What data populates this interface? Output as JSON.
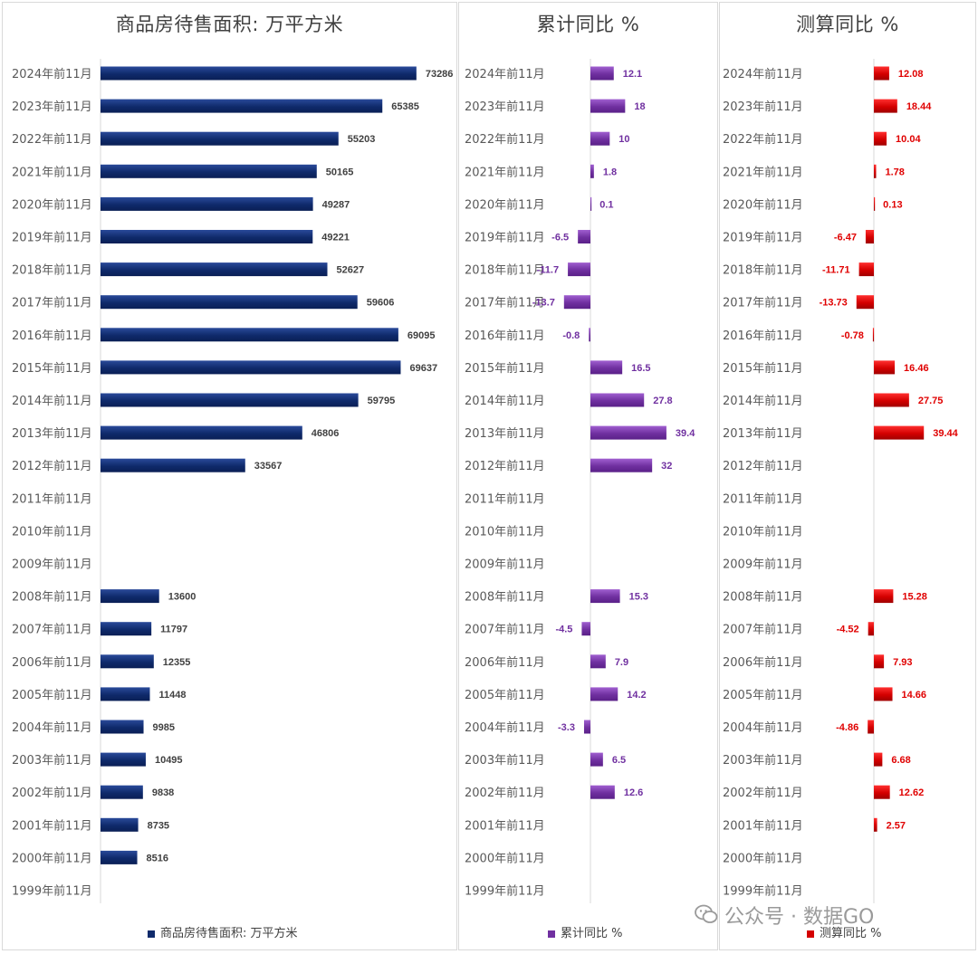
{
  "colors": {
    "bar1": "#0f2a6b",
    "bar2": "#7030a0",
    "bar3": "#d40000",
    "text": "#595959",
    "value2": "#7030a0",
    "value3": "#e00000"
  },
  "categories": [
    "2024年前11月",
    "2023年前11月",
    "2022年前11月",
    "2021年前11月",
    "2020年前11月",
    "2019年前11月",
    "2018年前11月",
    "2017年前11月",
    "2016年前11月",
    "2015年前11月",
    "2014年前11月",
    "2013年前11月",
    "2012年前11月",
    "2011年前11月",
    "2010年前11月",
    "2009年前11月",
    "2008年前11月",
    "2007年前11月",
    "2006年前11月",
    "2005年前11月",
    "2004年前11月",
    "2003年前11月",
    "2002年前11月",
    "2001年前11月",
    "2000年前11月",
    "1999年前11月"
  ],
  "chart_data": [
    {
      "type": "bar",
      "title": "商品房待售面积: 万平方米",
      "legend": "商品房待售面积: 万平方米",
      "values": [
        73286,
        65385,
        55203,
        50165,
        49287,
        49221,
        52627,
        59606,
        69095,
        69637,
        59795,
        46806,
        33567,
        null,
        null,
        null,
        13600,
        11797,
        12355,
        11448,
        9985,
        10495,
        9838,
        8735,
        8516,
        null
      ],
      "labels": [
        "73286",
        "65385",
        "55203",
        "50165",
        "49287",
        "49221",
        "52627",
        "59606",
        "69095",
        "69637",
        "59795",
        "46806",
        "33567",
        "",
        "",
        "",
        "13600",
        "11797",
        "12355",
        "11448",
        "9985",
        "10495",
        "9838",
        "8735",
        "8516",
        ""
      ]
    },
    {
      "type": "bar",
      "title": "累计同比 %",
      "legend": "累计同比 %",
      "values": [
        12.1,
        18,
        10,
        1.8,
        0.1,
        -6.5,
        -11.7,
        -13.7,
        -0.8,
        16.5,
        27.8,
        39.4,
        32,
        null,
        null,
        null,
        15.3,
        -4.5,
        7.9,
        14.2,
        -3.3,
        6.5,
        12.6,
        null,
        null,
        null
      ],
      "labels": [
        "12.1",
        "18",
        "10",
        "1.8",
        "0.1",
        "-6.5",
        "-11.7",
        "-13.7",
        "-0.8",
        "16.5",
        "27.8",
        "39.4",
        "32",
        "",
        "",
        "",
        "15.3",
        "-4.5",
        "7.9",
        "14.2",
        "-3.3",
        "6.5",
        "12.6",
        "",
        "",
        ""
      ]
    },
    {
      "type": "bar",
      "title": "测算同比 %",
      "legend": "测算同比 %",
      "values": [
        12.08,
        18.44,
        10.04,
        1.78,
        0.13,
        -6.47,
        -11.71,
        -13.73,
        -0.78,
        16.46,
        27.75,
        39.44,
        null,
        null,
        null,
        null,
        15.28,
        -4.52,
        7.93,
        14.66,
        -4.86,
        6.68,
        12.62,
        2.57,
        null,
        null
      ],
      "labels": [
        "12.08",
        "18.44",
        "10.04",
        "1.78",
        "0.13",
        "-6.47",
        "-11.71",
        "-13.73",
        "-0.78",
        "16.46",
        "27.75",
        "39.44",
        "",
        "",
        "",
        "",
        "15.28",
        "-4.52",
        "7.93",
        "14.66",
        "-4.86",
        "6.68",
        "12.62",
        "2.57",
        "",
        ""
      ]
    }
  ],
  "watermark": "公众号 · 数据GO"
}
